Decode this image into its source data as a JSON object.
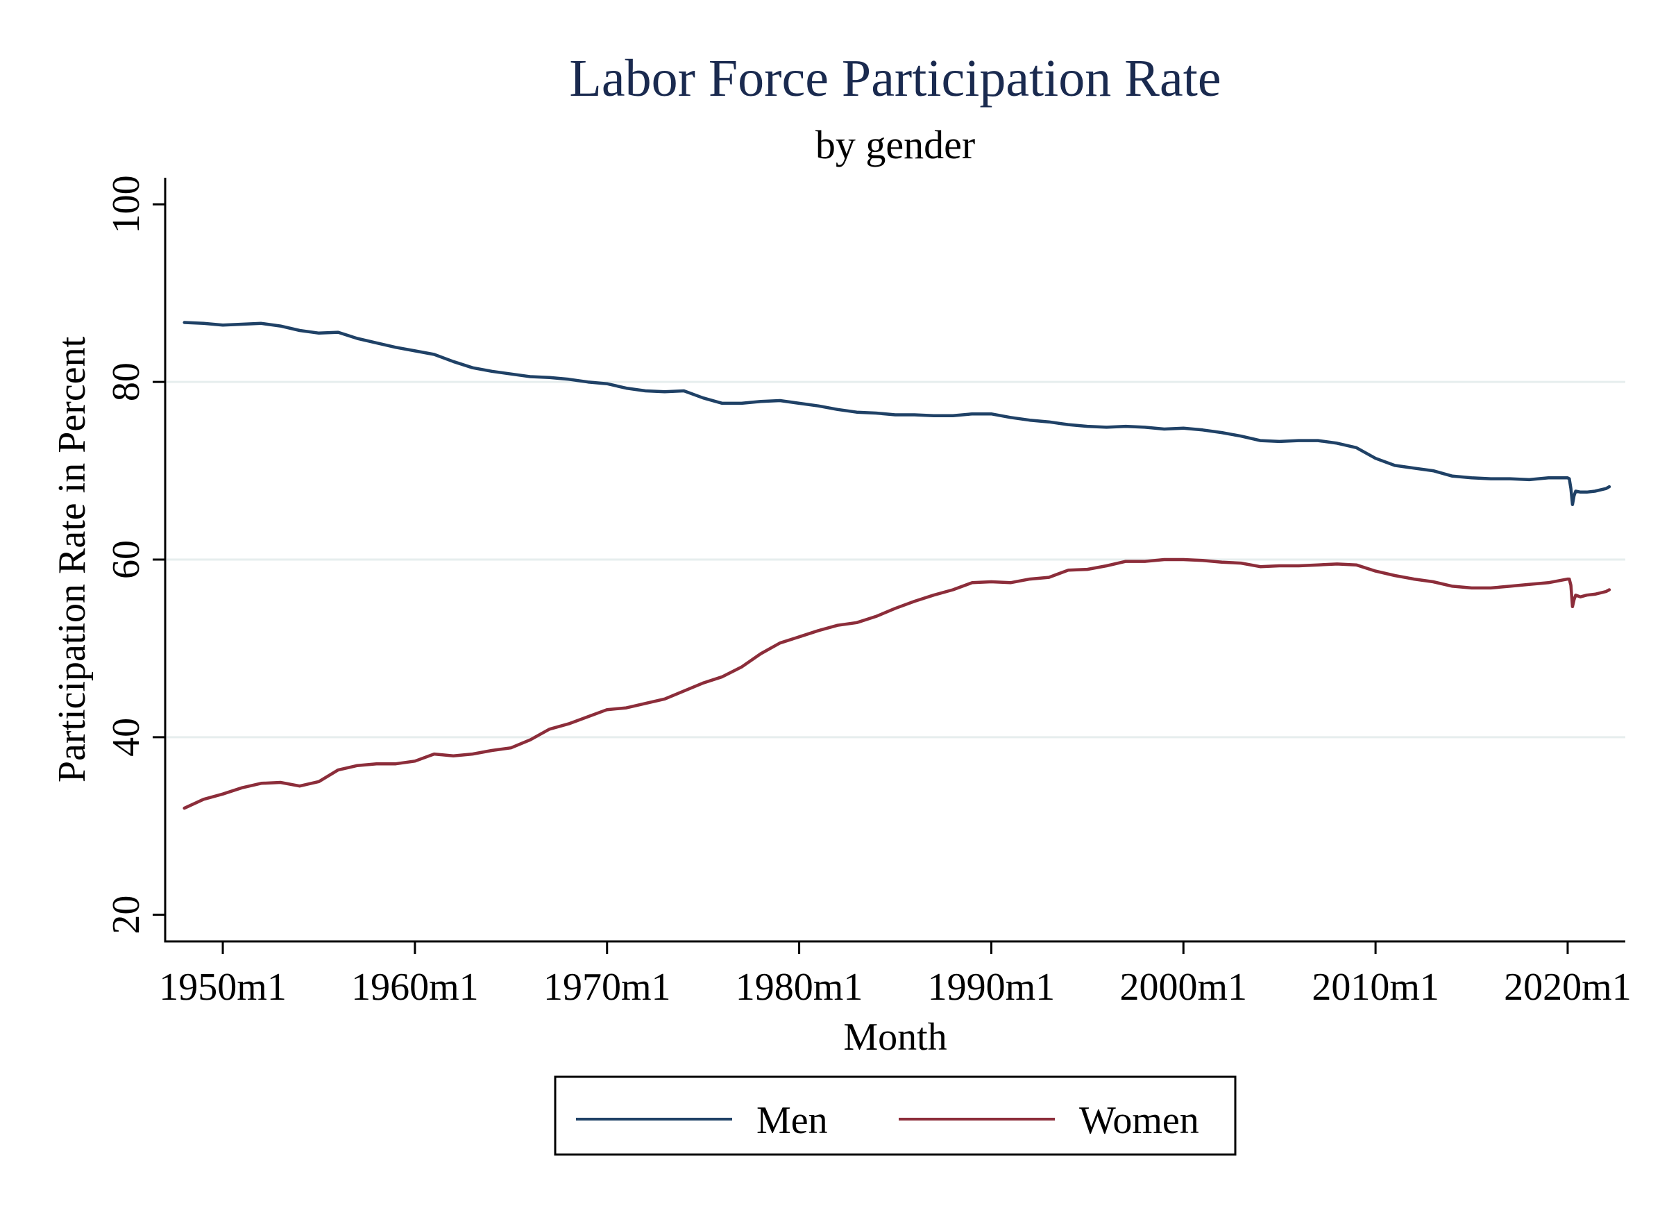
{
  "chart_data": {
    "type": "line",
    "title": "Labor Force Participation Rate",
    "subtitle": "by gender",
    "xlabel": "Month",
    "ylabel": "Participation Rate in Percent",
    "xlim": [
      "1947m1",
      "2023m1"
    ],
    "ylim": [
      17,
      103
    ],
    "x_ticks": [
      "1950m1",
      "1960m1",
      "1970m1",
      "1980m1",
      "1990m1",
      "2000m1",
      "2010m1",
      "2020m1"
    ],
    "y_ticks": [
      "20",
      "40",
      "60",
      "80",
      "100"
    ],
    "grid": true,
    "legend_position": "bottom",
    "series": [
      {
        "name": "Men",
        "color": "#1f4166",
        "points": [
          [
            "1948m1",
            86.7
          ],
          [
            "1949m1",
            86.6
          ],
          [
            "1950m1",
            86.4
          ],
          [
            "1951m1",
            86.5
          ],
          [
            "1952m1",
            86.6
          ],
          [
            "1953m1",
            86.3
          ],
          [
            "1954m1",
            85.8
          ],
          [
            "1955m1",
            85.5
          ],
          [
            "1956m1",
            85.6
          ],
          [
            "1957m1",
            84.9
          ],
          [
            "1958m1",
            84.4
          ],
          [
            "1959m1",
            83.9
          ],
          [
            "1960m1",
            83.5
          ],
          [
            "1961m1",
            83.1
          ],
          [
            "1962m1",
            82.3
          ],
          [
            "1963m1",
            81.6
          ],
          [
            "1964m1",
            81.2
          ],
          [
            "1965m1",
            80.9
          ],
          [
            "1966m1",
            80.6
          ],
          [
            "1967m1",
            80.5
          ],
          [
            "1968m1",
            80.3
          ],
          [
            "1969m1",
            80.0
          ],
          [
            "1970m1",
            79.8
          ],
          [
            "1971m1",
            79.3
          ],
          [
            "1972m1",
            79.0
          ],
          [
            "1973m1",
            78.9
          ],
          [
            "1974m1",
            79.0
          ],
          [
            "1975m1",
            78.2
          ],
          [
            "1976m1",
            77.6
          ],
          [
            "1977m1",
            77.6
          ],
          [
            "1978m1",
            77.8
          ],
          [
            "1979m1",
            77.9
          ],
          [
            "1980m1",
            77.6
          ],
          [
            "1981m1",
            77.3
          ],
          [
            "1982m1",
            76.9
          ],
          [
            "1983m1",
            76.6
          ],
          [
            "1984m1",
            76.5
          ],
          [
            "1985m1",
            76.3
          ],
          [
            "1986m1",
            76.3
          ],
          [
            "1987m1",
            76.2
          ],
          [
            "1988m1",
            76.2
          ],
          [
            "1989m1",
            76.4
          ],
          [
            "1990m1",
            76.4
          ],
          [
            "1991m1",
            76.0
          ],
          [
            "1992m1",
            75.7
          ],
          [
            "1993m1",
            75.5
          ],
          [
            "1994m1",
            75.2
          ],
          [
            "1995m1",
            75.0
          ],
          [
            "1996m1",
            74.9
          ],
          [
            "1997m1",
            75.0
          ],
          [
            "1998m1",
            74.9
          ],
          [
            "1999m1",
            74.7
          ],
          [
            "2000m1",
            74.8
          ],
          [
            "2001m1",
            74.6
          ],
          [
            "2002m1",
            74.3
          ],
          [
            "2003m1",
            73.9
          ],
          [
            "2004m1",
            73.4
          ],
          [
            "2005m1",
            73.3
          ],
          [
            "2006m1",
            73.4
          ],
          [
            "2007m1",
            73.4
          ],
          [
            "2008m1",
            73.1
          ],
          [
            "2009m1",
            72.6
          ],
          [
            "2010m1",
            71.4
          ],
          [
            "2011m1",
            70.6
          ],
          [
            "2012m1",
            70.3
          ],
          [
            "2013m1",
            70.0
          ],
          [
            "2014m1",
            69.4
          ],
          [
            "2015m1",
            69.2
          ],
          [
            "2016m1",
            69.1
          ],
          [
            "2017m1",
            69.1
          ],
          [
            "2018m1",
            69.0
          ],
          [
            "2019m1",
            69.2
          ],
          [
            "2020m1",
            69.2
          ],
          [
            "2020m2",
            69.1
          ],
          [
            "2020m3",
            68.0
          ],
          [
            "2020m4",
            66.2
          ],
          [
            "2020m5",
            67.2
          ],
          [
            "2020m6",
            67.7
          ],
          [
            "2020m9",
            67.6
          ],
          [
            "2021m1",
            67.6
          ],
          [
            "2021m6",
            67.7
          ],
          [
            "2022m1",
            68.0
          ],
          [
            "2022m3",
            68.2
          ]
        ]
      },
      {
        "name": "Women",
        "color": "#8c2d3a",
        "points": [
          [
            "1948m1",
            32.0
          ],
          [
            "1949m1",
            33.0
          ],
          [
            "1950m1",
            33.6
          ],
          [
            "1951m1",
            34.3
          ],
          [
            "1952m1",
            34.8
          ],
          [
            "1953m1",
            34.9
          ],
          [
            "1954m1",
            34.5
          ],
          [
            "1955m1",
            35.0
          ],
          [
            "1956m1",
            36.3
          ],
          [
            "1957m1",
            36.8
          ],
          [
            "1958m1",
            37.0
          ],
          [
            "1959m1",
            37.0
          ],
          [
            "1960m1",
            37.3
          ],
          [
            "1961m1",
            38.1
          ],
          [
            "1962m1",
            37.9
          ],
          [
            "1963m1",
            38.1
          ],
          [
            "1964m1",
            38.5
          ],
          [
            "1965m1",
            38.8
          ],
          [
            "1966m1",
            39.7
          ],
          [
            "1967m1",
            40.9
          ],
          [
            "1968m1",
            41.5
          ],
          [
            "1969m1",
            42.3
          ],
          [
            "1970m1",
            43.1
          ],
          [
            "1971m1",
            43.3
          ],
          [
            "1972m1",
            43.8
          ],
          [
            "1973m1",
            44.3
          ],
          [
            "1974m1",
            45.2
          ],
          [
            "1975m1",
            46.1
          ],
          [
            "1976m1",
            46.8
          ],
          [
            "1977m1",
            47.9
          ],
          [
            "1978m1",
            49.4
          ],
          [
            "1979m1",
            50.6
          ],
          [
            "1980m1",
            51.3
          ],
          [
            "1981m1",
            52.0
          ],
          [
            "1982m1",
            52.6
          ],
          [
            "1983m1",
            52.9
          ],
          [
            "1984m1",
            53.6
          ],
          [
            "1985m1",
            54.5
          ],
          [
            "1986m1",
            55.3
          ],
          [
            "1987m1",
            56.0
          ],
          [
            "1988m1",
            56.6
          ],
          [
            "1989m1",
            57.4
          ],
          [
            "1990m1",
            57.5
          ],
          [
            "1991m1",
            57.4
          ],
          [
            "1992m1",
            57.8
          ],
          [
            "1993m1",
            58.0
          ],
          [
            "1994m1",
            58.8
          ],
          [
            "1995m1",
            58.9
          ],
          [
            "1996m1",
            59.3
          ],
          [
            "1997m1",
            59.8
          ],
          [
            "1998m1",
            59.8
          ],
          [
            "1999m1",
            60.0
          ],
          [
            "2000m1",
            60.0
          ],
          [
            "2001m1",
            59.9
          ],
          [
            "2002m1",
            59.7
          ],
          [
            "2003m1",
            59.6
          ],
          [
            "2004m1",
            59.2
          ],
          [
            "2005m1",
            59.3
          ],
          [
            "2006m1",
            59.3
          ],
          [
            "2007m1",
            59.4
          ],
          [
            "2008m1",
            59.5
          ],
          [
            "2009m1",
            59.4
          ],
          [
            "2010m1",
            58.7
          ],
          [
            "2011m1",
            58.2
          ],
          [
            "2012m1",
            57.8
          ],
          [
            "2013m1",
            57.5
          ],
          [
            "2014m1",
            57.0
          ],
          [
            "2015m1",
            56.8
          ],
          [
            "2016m1",
            56.8
          ],
          [
            "2017m1",
            57.0
          ],
          [
            "2018m1",
            57.2
          ],
          [
            "2019m1",
            57.4
          ],
          [
            "2020m1",
            57.8
          ],
          [
            "2020m2",
            57.8
          ],
          [
            "2020m3",
            57.1
          ],
          [
            "2020m4",
            54.7
          ],
          [
            "2020m5",
            55.5
          ],
          [
            "2020m6",
            56.0
          ],
          [
            "2020m9",
            55.8
          ],
          [
            "2021m1",
            56.0
          ],
          [
            "2021m6",
            56.1
          ],
          [
            "2022m1",
            56.4
          ],
          [
            "2022m3",
            56.6
          ]
        ]
      }
    ]
  }
}
